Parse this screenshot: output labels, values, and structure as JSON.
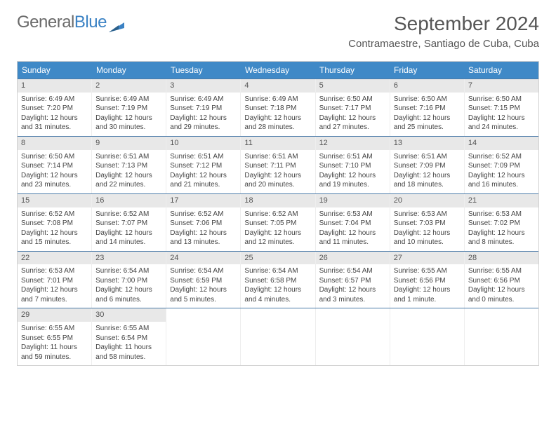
{
  "logo": {
    "prefix": "General",
    "suffix": "Blue"
  },
  "title": "September 2024",
  "location": "Contramaestre, Santiago de Cuba, Cuba",
  "colors": {
    "header_bg": "#3f89c7",
    "header_text": "#ffffff",
    "row_divider": "#4a7aa8",
    "daynum_bg": "#e8e8e8",
    "text": "#444444",
    "logo_gray": "#6a6a6a",
    "logo_blue": "#3b82c4"
  },
  "weekdays": [
    "Sunday",
    "Monday",
    "Tuesday",
    "Wednesday",
    "Thursday",
    "Friday",
    "Saturday"
  ],
  "weeks": [
    [
      {
        "n": "1",
        "sr": "6:49 AM",
        "ss": "7:20 PM",
        "dl": "12 hours and 31 minutes."
      },
      {
        "n": "2",
        "sr": "6:49 AM",
        "ss": "7:19 PM",
        "dl": "12 hours and 30 minutes."
      },
      {
        "n": "3",
        "sr": "6:49 AM",
        "ss": "7:19 PM",
        "dl": "12 hours and 29 minutes."
      },
      {
        "n": "4",
        "sr": "6:49 AM",
        "ss": "7:18 PM",
        "dl": "12 hours and 28 minutes."
      },
      {
        "n": "5",
        "sr": "6:50 AM",
        "ss": "7:17 PM",
        "dl": "12 hours and 27 minutes."
      },
      {
        "n": "6",
        "sr": "6:50 AM",
        "ss": "7:16 PM",
        "dl": "12 hours and 25 minutes."
      },
      {
        "n": "7",
        "sr": "6:50 AM",
        "ss": "7:15 PM",
        "dl": "12 hours and 24 minutes."
      }
    ],
    [
      {
        "n": "8",
        "sr": "6:50 AM",
        "ss": "7:14 PM",
        "dl": "12 hours and 23 minutes."
      },
      {
        "n": "9",
        "sr": "6:51 AM",
        "ss": "7:13 PM",
        "dl": "12 hours and 22 minutes."
      },
      {
        "n": "10",
        "sr": "6:51 AM",
        "ss": "7:12 PM",
        "dl": "12 hours and 21 minutes."
      },
      {
        "n": "11",
        "sr": "6:51 AM",
        "ss": "7:11 PM",
        "dl": "12 hours and 20 minutes."
      },
      {
        "n": "12",
        "sr": "6:51 AM",
        "ss": "7:10 PM",
        "dl": "12 hours and 19 minutes."
      },
      {
        "n": "13",
        "sr": "6:51 AM",
        "ss": "7:09 PM",
        "dl": "12 hours and 18 minutes."
      },
      {
        "n": "14",
        "sr": "6:52 AM",
        "ss": "7:09 PM",
        "dl": "12 hours and 16 minutes."
      }
    ],
    [
      {
        "n": "15",
        "sr": "6:52 AM",
        "ss": "7:08 PM",
        "dl": "12 hours and 15 minutes."
      },
      {
        "n": "16",
        "sr": "6:52 AM",
        "ss": "7:07 PM",
        "dl": "12 hours and 14 minutes."
      },
      {
        "n": "17",
        "sr": "6:52 AM",
        "ss": "7:06 PM",
        "dl": "12 hours and 13 minutes."
      },
      {
        "n": "18",
        "sr": "6:52 AM",
        "ss": "7:05 PM",
        "dl": "12 hours and 12 minutes."
      },
      {
        "n": "19",
        "sr": "6:53 AM",
        "ss": "7:04 PM",
        "dl": "12 hours and 11 minutes."
      },
      {
        "n": "20",
        "sr": "6:53 AM",
        "ss": "7:03 PM",
        "dl": "12 hours and 10 minutes."
      },
      {
        "n": "21",
        "sr": "6:53 AM",
        "ss": "7:02 PM",
        "dl": "12 hours and 8 minutes."
      }
    ],
    [
      {
        "n": "22",
        "sr": "6:53 AM",
        "ss": "7:01 PM",
        "dl": "12 hours and 7 minutes."
      },
      {
        "n": "23",
        "sr": "6:54 AM",
        "ss": "7:00 PM",
        "dl": "12 hours and 6 minutes."
      },
      {
        "n": "24",
        "sr": "6:54 AM",
        "ss": "6:59 PM",
        "dl": "12 hours and 5 minutes."
      },
      {
        "n": "25",
        "sr": "6:54 AM",
        "ss": "6:58 PM",
        "dl": "12 hours and 4 minutes."
      },
      {
        "n": "26",
        "sr": "6:54 AM",
        "ss": "6:57 PM",
        "dl": "12 hours and 3 minutes."
      },
      {
        "n": "27",
        "sr": "6:55 AM",
        "ss": "6:56 PM",
        "dl": "12 hours and 1 minute."
      },
      {
        "n": "28",
        "sr": "6:55 AM",
        "ss": "6:56 PM",
        "dl": "12 hours and 0 minutes."
      }
    ],
    [
      {
        "n": "29",
        "sr": "6:55 AM",
        "ss": "6:55 PM",
        "dl": "11 hours and 59 minutes."
      },
      {
        "n": "30",
        "sr": "6:55 AM",
        "ss": "6:54 PM",
        "dl": "11 hours and 58 minutes."
      },
      {
        "empty": true
      },
      {
        "empty": true
      },
      {
        "empty": true
      },
      {
        "empty": true
      },
      {
        "empty": true
      }
    ]
  ],
  "labels": {
    "sunrise": "Sunrise:",
    "sunset": "Sunset:",
    "daylight": "Daylight:"
  }
}
